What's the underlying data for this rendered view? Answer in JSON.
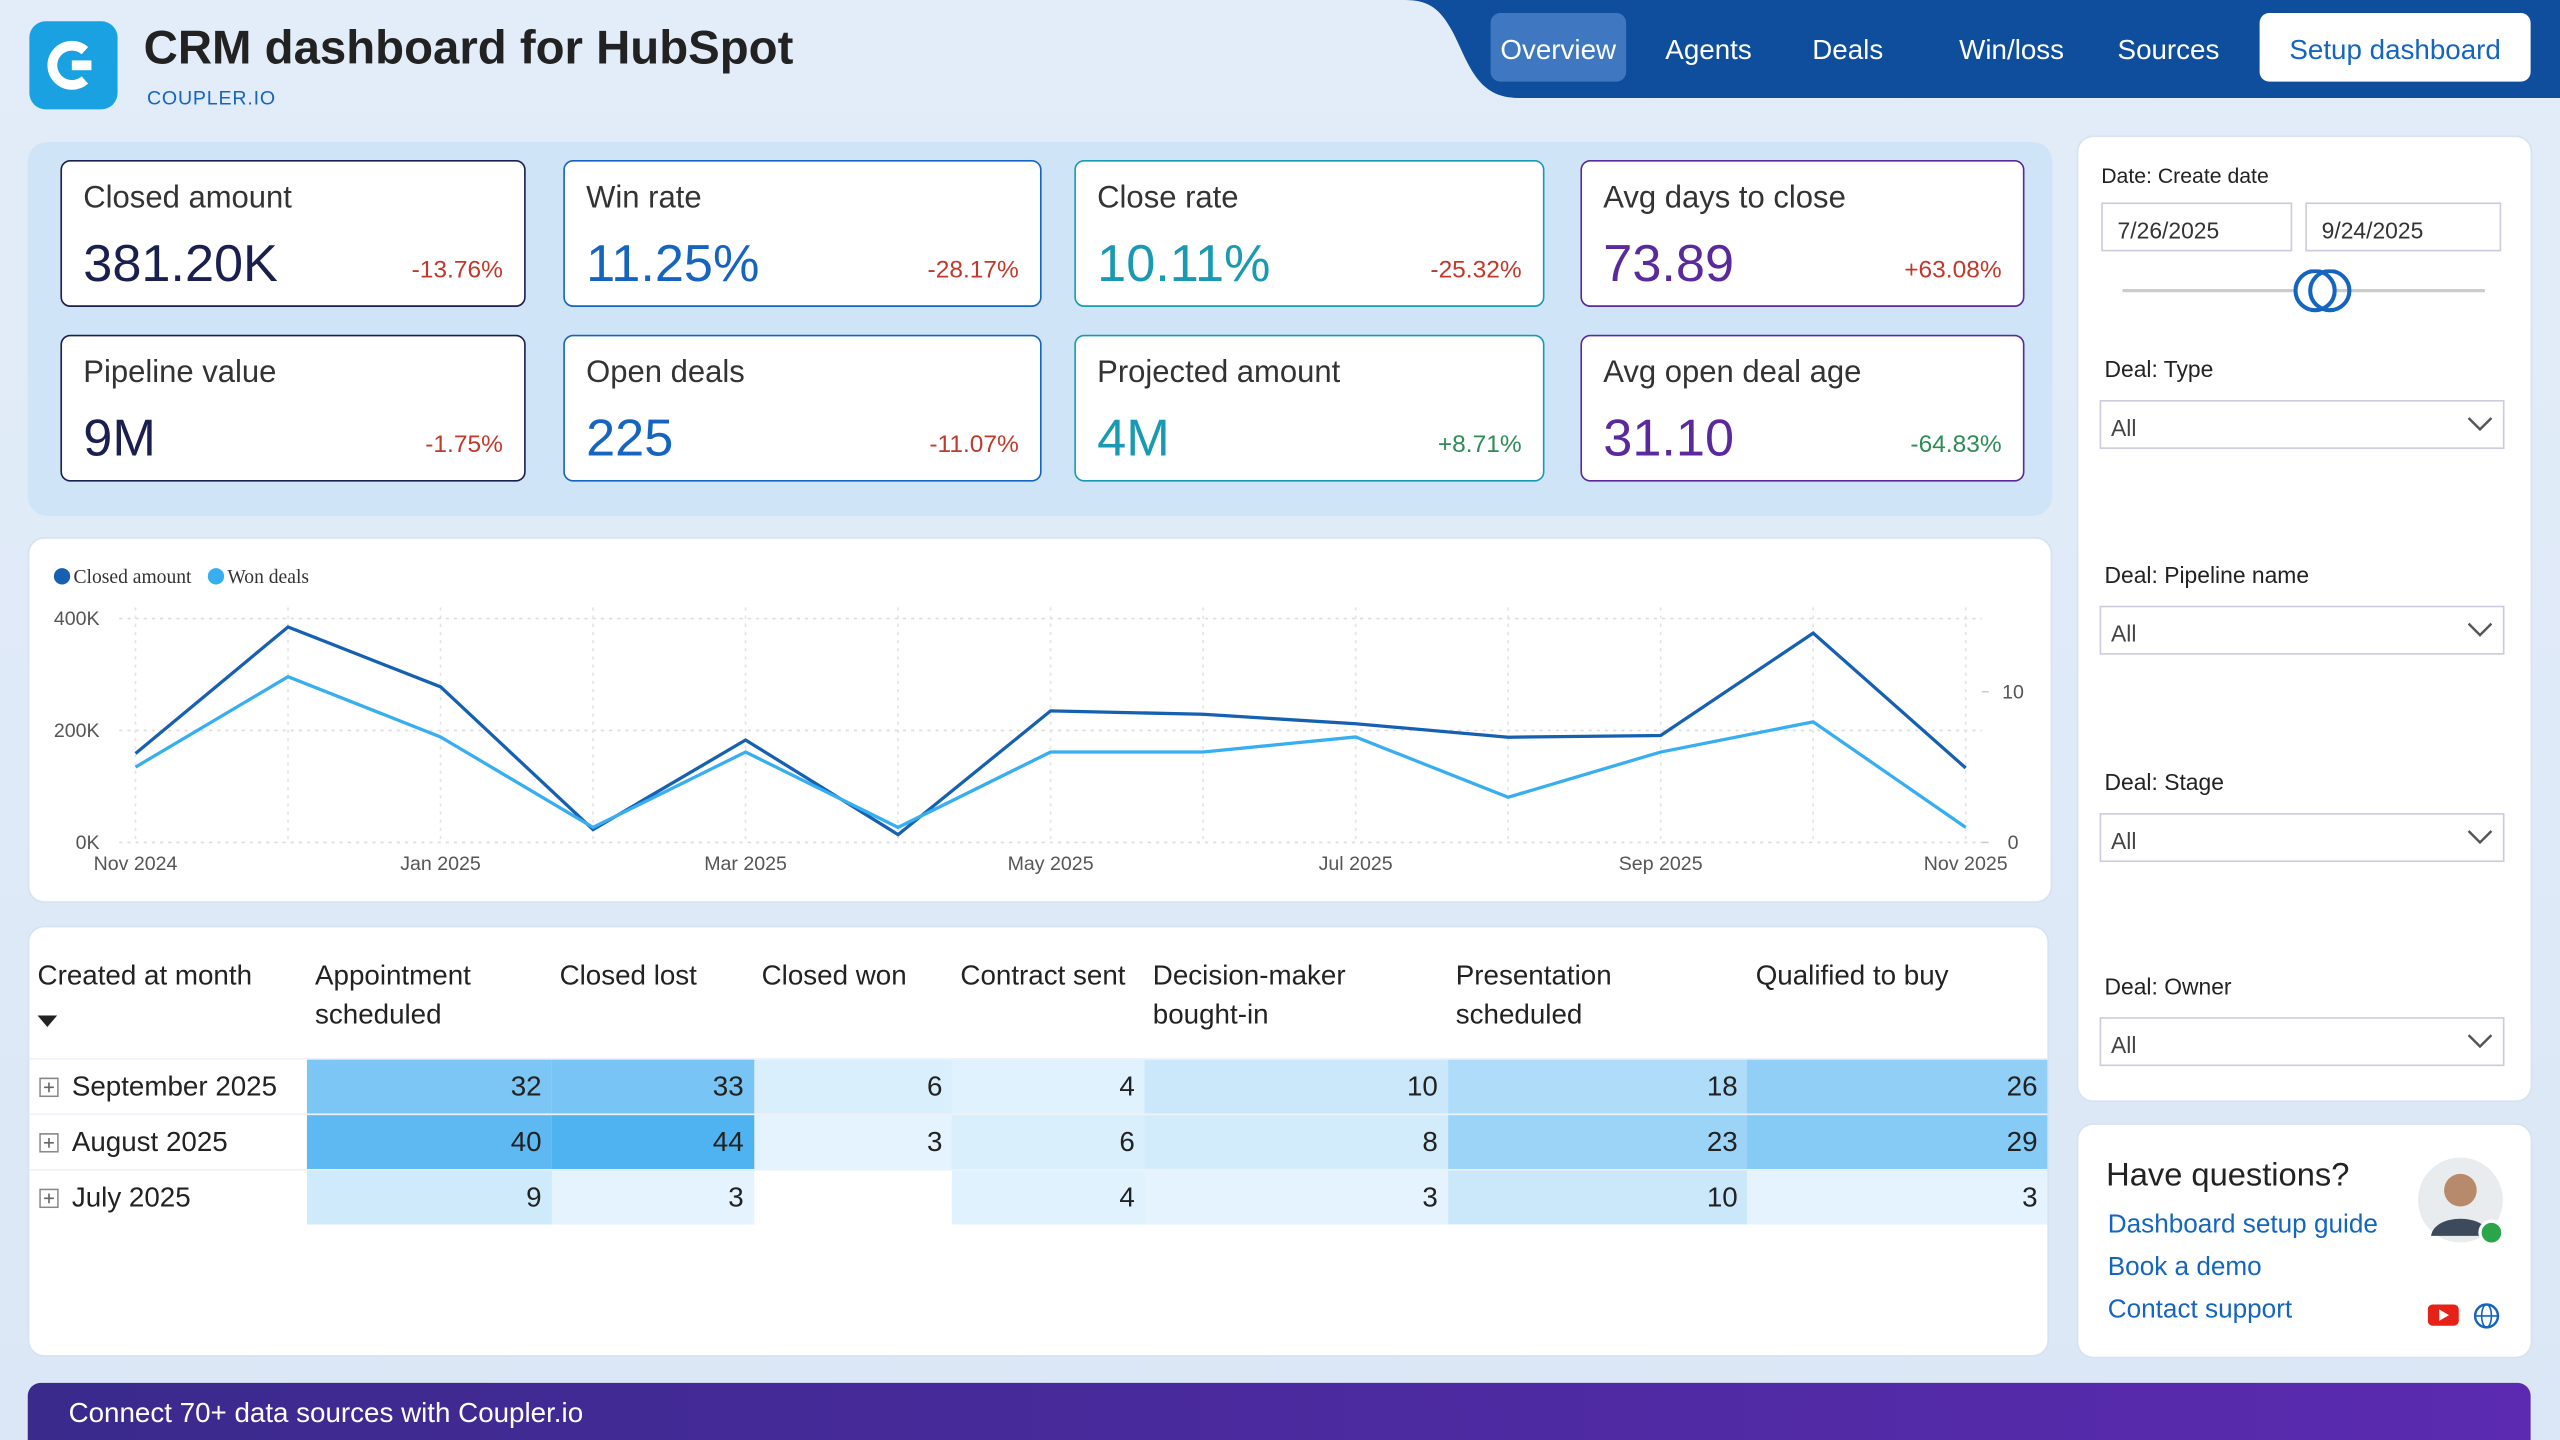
{
  "header": {
    "title": "CRM dashboard for HubSpot",
    "brand": "COUPLER.IO"
  },
  "nav": {
    "tabs": [
      "Overview",
      "Agents",
      "Deals",
      "Win/loss",
      "Sources"
    ],
    "active": 0,
    "button": "Setup dashboard"
  },
  "kpis": [
    {
      "label": "Closed amount",
      "value": "381.20K",
      "change": "-13.76%",
      "color": "#1b1f4f",
      "change_color": "#c0392b"
    },
    {
      "label": "Win rate",
      "value": "11.25%",
      "change": "-28.17%",
      "color": "#1565c0",
      "change_color": "#c0392b"
    },
    {
      "label": "Close rate",
      "value": "10.11%",
      "change": "-25.32%",
      "color": "#1a9ab2",
      "change_color": "#c0392b"
    },
    {
      "label": "Avg days to close",
      "value": "73.89",
      "change": "+63.08%",
      "color": "#5a2a9c",
      "change_color": "#c0392b"
    },
    {
      "label": "Pipeline value",
      "value": "9M",
      "change": "-1.75%",
      "color": "#1b1f4f",
      "change_color": "#c0392b"
    },
    {
      "label": "Open deals",
      "value": "225",
      "change": "-11.07%",
      "color": "#1565c0",
      "change_color": "#c0392b"
    },
    {
      "label": "Projected amount",
      "value": "4M",
      "change": "+8.71%",
      "color": "#1a9ab2",
      "change_color": "#2e8b57"
    },
    {
      "label": "Avg open deal age",
      "value": "31.10",
      "change": "-64.83%",
      "color": "#5a2a9c",
      "change_color": "#2e8b57"
    }
  ],
  "chart_data": {
    "type": "line",
    "categories": [
      "Nov 2024",
      null,
      "Jan 2025",
      null,
      "Mar 2025",
      null,
      "May 2025",
      null,
      "Jul 2025",
      null,
      "Sep 2025",
      null,
      "Nov 2025"
    ],
    "series": [
      {
        "name": "Closed amount",
        "color": "#1560b0",
        "values": [
          159000,
          385000,
          278000,
          23000,
          183000,
          14000,
          235000,
          229000,
          212000,
          188000,
          191000,
          374000,
          133000
        ]
      },
      {
        "name": "Won deals",
        "color": "#36aef0",
        "axis": "y2",
        "values": [
          5,
          11,
          7,
          1,
          6,
          1,
          6,
          6,
          7,
          3,
          6,
          8,
          1
        ]
      }
    ],
    "ylim": [
      0,
      420000
    ],
    "yticks": [
      {
        "value": 0,
        "label": "0K"
      },
      {
        "value": 200000,
        "label": "200K"
      },
      {
        "value": 400000,
        "label": "400K"
      }
    ],
    "y2lim": [
      0,
      15.6
    ],
    "y2ticks": [
      0,
      10
    ],
    "grid": true
  },
  "table": {
    "columns": [
      "Created at month",
      "Appointment scheduled",
      "Closed lost",
      "Closed won",
      "Contract sent",
      "Decision-maker bought-in",
      "Presentation scheduled",
      "Qualified to buy"
    ],
    "rows": [
      {
        "label": "September 2025",
        "values": [
          32,
          33,
          6,
          4,
          10,
          18,
          26
        ]
      },
      {
        "label": "August 2025",
        "values": [
          40,
          44,
          3,
          6,
          8,
          23,
          29
        ]
      },
      {
        "label": "July 2025",
        "values": [
          9,
          3,
          null,
          4,
          3,
          10,
          3
        ]
      }
    ]
  },
  "filters": {
    "date_label": "Date: Create date",
    "date_from": "7/26/2025",
    "date_to": "9/24/2025",
    "dropdowns": [
      {
        "label": "Deal: Type",
        "value": "All"
      },
      {
        "label": "Deal: Pipeline name",
        "value": "All"
      },
      {
        "label": "Deal: Stage",
        "value": "All"
      },
      {
        "label": "Deal: Owner",
        "value": "All"
      }
    ]
  },
  "help": {
    "title": "Have questions?",
    "links": [
      "Dashboard setup guide",
      "Book a demo",
      "Contact support"
    ]
  },
  "banner": "Connect 70+ data sources with Coupler.io"
}
